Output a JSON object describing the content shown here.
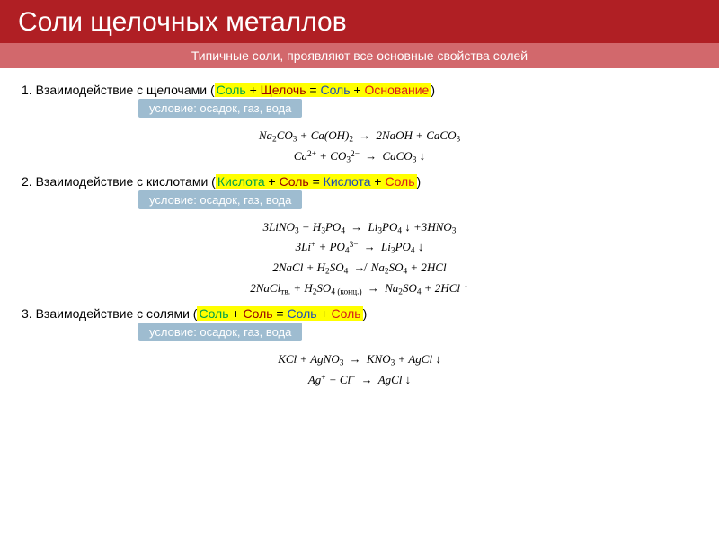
{
  "colors": {
    "title_bg": "#b01f24",
    "title_fg": "#ffffff",
    "subtitle_bg": "#d2686c",
    "subtitle_fg": "#ffffff",
    "highlight": "#ffff00",
    "pill_bg": "#9ebcd0",
    "pill_fg": "#ffffff",
    "term_green": "#00a04a",
    "term_darkred": "#9a0000",
    "term_blue": "#1a4bb8",
    "term_red": "#d81b1b"
  },
  "header": {
    "title": "Соли щелочных металлов",
    "subtitle": "Типичные соли, проявляют все основные свойства солей"
  },
  "sections": [
    {
      "num": "1.",
      "intro": "Взаимодействие с щелочами (",
      "scheme": [
        {
          "t": "Соль",
          "c": "green"
        },
        {
          "t": " + ",
          "c": ""
        },
        {
          "t": "Щелочь",
          "c": "darkred"
        },
        {
          "t": " = ",
          "c": ""
        },
        {
          "t": "Соль",
          "c": "blue"
        },
        {
          "t": " + ",
          "c": ""
        },
        {
          "t": "Основание",
          "c": "red"
        }
      ],
      "outro": ")",
      "condition": "условие: осадок, газ, вода",
      "equations": [
        "Na₂CO₃ + Ca(OH)₂ → 2NaOH + CaCO₃",
        "Ca²⁺ + CO₃²⁻ → CaCO₃ ↓"
      ]
    },
    {
      "num": "2.",
      "intro": "Взаимодействие с кислотами (",
      "scheme": [
        {
          "t": "Кислота",
          "c": "green"
        },
        {
          "t": " + ",
          "c": ""
        },
        {
          "t": "Соль",
          "c": "darkred"
        },
        {
          "t": " = ",
          "c": ""
        },
        {
          "t": "Кислота",
          "c": "blue"
        },
        {
          "t": " + ",
          "c": ""
        },
        {
          "t": "Соль",
          "c": "red"
        }
      ],
      "outro": ")",
      "condition": "условие: осадок, газ, вода",
      "equations": [
        "3LiNO₃ + H₃PO₄ → Li₃PO₄ ↓ +3HNO₃",
        "3Li⁺ + PO₄³⁻ → Li₃PO₄ ↓",
        "2NaCl + H₂SO₄ ↛ Na₂SO₄ + 2HCl",
        "2NaClₜᵥ. + H₂SO₄ (конц.) → Na₂SO₄ + 2HCl ↑"
      ]
    },
    {
      "num": "3.",
      "intro": "Взаимодействие с солями (",
      "scheme": [
        {
          "t": "Соль",
          "c": "green"
        },
        {
          "t": " + ",
          "c": ""
        },
        {
          "t": "Соль",
          "c": "darkred"
        },
        {
          "t": " = ",
          "c": ""
        },
        {
          "t": "Соль",
          "c": "blue"
        },
        {
          "t": " + ",
          "c": ""
        },
        {
          "t": "Соль",
          "c": "red"
        }
      ],
      "outro": ")",
      "condition": "условие: осадок, газ, вода",
      "equations": [
        "KCl + AgNO₃ → KNO₃ + AgCl ↓",
        "Ag⁺ + Cl⁻ → AgCl ↓"
      ]
    }
  ]
}
